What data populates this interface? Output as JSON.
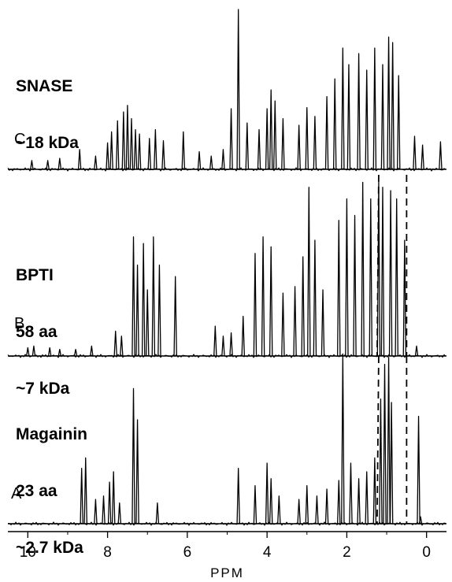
{
  "chart_data": {
    "type": "line",
    "x_axis": {
      "label": "PPM",
      "range": [
        10.5,
        -0.5
      ],
      "reversed": true,
      "ticks": [
        10,
        8,
        6,
        4,
        2,
        0
      ],
      "tick_labels": [
        "10",
        "8",
        "6",
        "4",
        "2",
        "0"
      ]
    },
    "grid": false,
    "dashed_reference_lines_ppm": {
      "A_to_B": [
        1.2,
        0.5
      ],
      "B_to_C": [
        1.2,
        0.5
      ]
    },
    "colors": {
      "trace": "#000000",
      "background": "#ffffff"
    },
    "spectra": [
      {
        "letter": "C",
        "lines": [
          "SNASE",
          "~18 kDa"
        ],
        "peaks": [
          {
            "ppm": 9.9,
            "h": 0.08
          },
          {
            "ppm": 9.5,
            "h": 0.08
          },
          {
            "ppm": 9.2,
            "h": 0.1
          },
          {
            "ppm": 8.7,
            "h": 0.18
          },
          {
            "ppm": 8.3,
            "h": 0.12
          },
          {
            "ppm": 8.0,
            "h": 0.24
          },
          {
            "ppm": 7.9,
            "h": 0.34
          },
          {
            "ppm": 7.75,
            "h": 0.44
          },
          {
            "ppm": 7.6,
            "h": 0.52
          },
          {
            "ppm": 7.5,
            "h": 0.58
          },
          {
            "ppm": 7.4,
            "h": 0.46
          },
          {
            "ppm": 7.3,
            "h": 0.36
          },
          {
            "ppm": 7.2,
            "h": 0.32
          },
          {
            "ppm": 6.95,
            "h": 0.28
          },
          {
            "ppm": 6.8,
            "h": 0.36
          },
          {
            "ppm": 6.6,
            "h": 0.26
          },
          {
            "ppm": 6.1,
            "h": 0.34
          },
          {
            "ppm": 5.7,
            "h": 0.16
          },
          {
            "ppm": 5.4,
            "h": 0.12
          },
          {
            "ppm": 5.1,
            "h": 0.18
          },
          {
            "ppm": 4.9,
            "h": 0.55
          },
          {
            "ppm": 4.72,
            "h": 1.45
          },
          {
            "ppm": 4.5,
            "h": 0.42
          },
          {
            "ppm": 4.2,
            "h": 0.36
          },
          {
            "ppm": 4.0,
            "h": 0.55
          },
          {
            "ppm": 3.9,
            "h": 0.72
          },
          {
            "ppm": 3.8,
            "h": 0.62
          },
          {
            "ppm": 3.6,
            "h": 0.46
          },
          {
            "ppm": 3.2,
            "h": 0.4
          },
          {
            "ppm": 3.0,
            "h": 0.56
          },
          {
            "ppm": 2.8,
            "h": 0.48
          },
          {
            "ppm": 2.5,
            "h": 0.66
          },
          {
            "ppm": 2.3,
            "h": 0.82
          },
          {
            "ppm": 2.1,
            "h": 1.1
          },
          {
            "ppm": 1.95,
            "h": 0.95
          },
          {
            "ppm": 1.7,
            "h": 1.05
          },
          {
            "ppm": 1.5,
            "h": 0.9
          },
          {
            "ppm": 1.3,
            "h": 1.1
          },
          {
            "ppm": 1.1,
            "h": 0.95
          },
          {
            "ppm": 0.95,
            "h": 1.2
          },
          {
            "ppm": 0.85,
            "h": 1.15
          },
          {
            "ppm": 0.7,
            "h": 0.85
          },
          {
            "ppm": 0.3,
            "h": 0.3
          },
          {
            "ppm": 0.1,
            "h": 0.22
          },
          {
            "ppm": -0.35,
            "h": 0.25
          }
        ]
      },
      {
        "letter": "B",
        "lines": [
          "BPTI",
          "58 aa",
          "~7 kDa"
        ],
        "peaks": [
          {
            "ppm": 10.0,
            "h": 0.05
          },
          {
            "ppm": 9.85,
            "h": 0.06
          },
          {
            "ppm": 9.45,
            "h": 0.05
          },
          {
            "ppm": 9.2,
            "h": 0.04
          },
          {
            "ppm": 8.8,
            "h": 0.04
          },
          {
            "ppm": 8.4,
            "h": 0.06
          },
          {
            "ppm": 7.8,
            "h": 0.15
          },
          {
            "ppm": 7.65,
            "h": 0.12
          },
          {
            "ppm": 7.35,
            "h": 0.72
          },
          {
            "ppm": 7.25,
            "h": 0.55
          },
          {
            "ppm": 7.1,
            "h": 0.68
          },
          {
            "ppm": 7.0,
            "h": 0.4
          },
          {
            "ppm": 6.85,
            "h": 0.72
          },
          {
            "ppm": 6.7,
            "h": 0.55
          },
          {
            "ppm": 6.3,
            "h": 0.48
          },
          {
            "ppm": 5.3,
            "h": 0.18
          },
          {
            "ppm": 5.1,
            "h": 0.12
          },
          {
            "ppm": 4.9,
            "h": 0.14
          },
          {
            "ppm": 4.6,
            "h": 0.24
          },
          {
            "ppm": 4.3,
            "h": 0.62
          },
          {
            "ppm": 4.1,
            "h": 0.72
          },
          {
            "ppm": 3.9,
            "h": 0.66
          },
          {
            "ppm": 3.6,
            "h": 0.38
          },
          {
            "ppm": 3.3,
            "h": 0.42
          },
          {
            "ppm": 3.1,
            "h": 0.6
          },
          {
            "ppm": 2.95,
            "h": 1.02
          },
          {
            "ppm": 2.8,
            "h": 0.7
          },
          {
            "ppm": 2.6,
            "h": 0.4
          },
          {
            "ppm": 2.2,
            "h": 0.82
          },
          {
            "ppm": 2.0,
            "h": 0.95
          },
          {
            "ppm": 1.8,
            "h": 0.85
          },
          {
            "ppm": 1.6,
            "h": 1.05
          },
          {
            "ppm": 1.4,
            "h": 0.95
          },
          {
            "ppm": 1.2,
            "h": 1.05
          },
          {
            "ppm": 1.1,
            "h": 1.02
          },
          {
            "ppm": 0.9,
            "h": 1.0
          },
          {
            "ppm": 0.75,
            "h": 0.95
          },
          {
            "ppm": 0.55,
            "h": 0.7
          },
          {
            "ppm": 0.25,
            "h": 0.06
          }
        ]
      },
      {
        "letter": "A",
        "lines": [
          "Magainin",
          "23 aa",
          "~2.7 kDa"
        ],
        "peaks": [
          {
            "ppm": 8.65,
            "h": 0.32
          },
          {
            "ppm": 8.55,
            "h": 0.38
          },
          {
            "ppm": 8.3,
            "h": 0.14
          },
          {
            "ppm": 8.1,
            "h": 0.16
          },
          {
            "ppm": 7.95,
            "h": 0.24
          },
          {
            "ppm": 7.85,
            "h": 0.3
          },
          {
            "ppm": 7.7,
            "h": 0.12
          },
          {
            "ppm": 7.35,
            "h": 0.78
          },
          {
            "ppm": 7.25,
            "h": 0.6
          },
          {
            "ppm": 6.75,
            "h": 0.12
          },
          {
            "ppm": 4.72,
            "h": 0.32
          },
          {
            "ppm": 4.3,
            "h": 0.22
          },
          {
            "ppm": 4.0,
            "h": 0.35
          },
          {
            "ppm": 3.9,
            "h": 0.26
          },
          {
            "ppm": 3.7,
            "h": 0.16
          },
          {
            "ppm": 3.2,
            "h": 0.14
          },
          {
            "ppm": 3.0,
            "h": 0.22
          },
          {
            "ppm": 2.75,
            "h": 0.16
          },
          {
            "ppm": 2.5,
            "h": 0.2
          },
          {
            "ppm": 2.2,
            "h": 0.25
          },
          {
            "ppm": 2.1,
            "h": 0.98
          },
          {
            "ppm": 1.9,
            "h": 0.35
          },
          {
            "ppm": 1.7,
            "h": 0.26
          },
          {
            "ppm": 1.5,
            "h": 0.3
          },
          {
            "ppm": 1.3,
            "h": 0.38
          },
          {
            "ppm": 1.15,
            "h": 0.72
          },
          {
            "ppm": 1.05,
            "h": 0.92
          },
          {
            "ppm": 0.95,
            "h": 0.96
          },
          {
            "ppm": 0.88,
            "h": 0.7
          },
          {
            "ppm": 0.2,
            "h": 0.62
          },
          {
            "ppm": 0.15,
            "h": 0.04
          }
        ]
      }
    ]
  }
}
